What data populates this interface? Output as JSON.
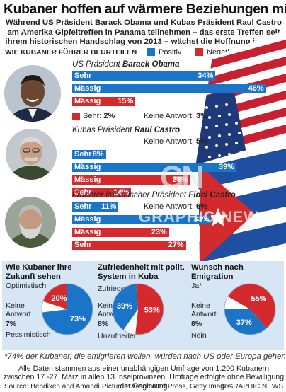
{
  "title": "Kubaner hoffen auf wärmere Beziehungen mit USA",
  "intro": "Während US Präsident Barack Obama und Kubas Präsident Raul Castro am Amerika Gipfeltreffen in Panama teilnehmen – das erste Treffen seit ihrem historischen Handschlag von 2013 – wächst die Hoffnung in Kuba",
  "legend": {
    "title": "WIE KUBANER FÜHRER BEURTEILEN",
    "positive": "Positiv",
    "negative": "Negativ"
  },
  "colors": {
    "positive": "#1a75c9",
    "negative": "#d42a2e",
    "panel": "#d6e6f5"
  },
  "chart_data": [
    {
      "type": "bar",
      "title": "WIE KUBANER FÜHRER BEURTEILEN",
      "groups": [
        {
          "heading_prefix": "US Präsident ",
          "heading_name": "Barack Obama",
          "bars": [
            {
              "label": "Sehr",
              "sentiment": "positive",
              "value": 34
            },
            {
              "label": "Mässig",
              "sentiment": "positive",
              "value": 46
            },
            {
              "label": "Mässig",
              "sentiment": "negative",
              "value": 15
            }
          ],
          "extras": [
            {
              "label": "Sehr:",
              "sentiment": "negative",
              "value": 2
            },
            {
              "label": "Keine Antwort:",
              "value": 3
            }
          ]
        },
        {
          "heading_prefix": "Kubas Präsident ",
          "heading_name": "Raul Castro",
          "bars": [
            {
              "label": "Sehr",
              "sentiment": "positive",
              "value": 8
            },
            {
              "label": "Mässig",
              "sentiment": "positive",
              "value": 39
            },
            {
              "label": "Mässig",
              "sentiment": "negative",
              "value": 28
            },
            {
              "label": "Sehr",
              "sentiment": "negative",
              "value": 14
            }
          ],
          "extras": [
            {
              "label": "Keine Antwort:",
              "value": 5
            }
          ]
        },
        {
          "heading_prefix": "Früherer kubanischer Präsident ",
          "heading_name": "Fidel Castro",
          "bars": [
            {
              "label": "Sehr",
              "sentiment": "positive",
              "value": 11
            },
            {
              "label": "Mässig",
              "sentiment": "positive",
              "value": 33
            },
            {
              "label": "Mässig",
              "sentiment": "negative",
              "value": 23
            },
            {
              "label": "Sehr",
              "sentiment": "negative",
              "value": 27
            }
          ],
          "extras": [
            {
              "label": "Keine Antwort:",
              "value": 6
            }
          ]
        }
      ]
    },
    {
      "type": "pie",
      "title": "Wie Kubaner ihre Zukunft sehen",
      "slices": [
        {
          "label": "Optimistisch",
          "value": 73,
          "sentiment": "positive"
        },
        {
          "label": "Pessimistisch",
          "value": 20,
          "sentiment": "negative"
        },
        {
          "label": "Keine Antwort",
          "value": 7,
          "sentiment": "none"
        }
      ]
    },
    {
      "type": "pie",
      "title": "Zufriedenheit mit polit. System in Kuba",
      "slices": [
        {
          "label": "Zufrieden",
          "value": 39,
          "sentiment": "positive"
        },
        {
          "label": "Unzufrieden",
          "value": 53,
          "sentiment": "negative"
        },
        {
          "label": "Keine Antwort",
          "value": 8,
          "sentiment": "none"
        }
      ]
    },
    {
      "type": "pie",
      "title": "Wunsch nach Emigration",
      "slices": [
        {
          "label": "Ja*",
          "value": 55,
          "sentiment": "negative"
        },
        {
          "label": "Nein",
          "value": 37,
          "sentiment": "positive"
        },
        {
          "label": "Keine Antwort",
          "value": 8,
          "sentiment": "none"
        }
      ]
    }
  ],
  "pies": [
    {
      "title": "Wie Kubaner ihre Zukunft sehen",
      "labels": {
        "top": "Optimistisch",
        "mid": "Keine Antwort",
        "mid_value": "7%",
        "bottom": "Pessimistisch"
      }
    },
    {
      "title": "Zufriedenheit mit polit. System in Kuba",
      "labels": {
        "top": "Zufrieden",
        "mid": "Keine Antwort",
        "mid_value": "8%",
        "bottom": "Unzufrieden"
      }
    },
    {
      "title": "Wunsch nach Emigration",
      "labels": {
        "top": "Ja*",
        "mid": "Keine Antwort",
        "mid_value": "8%",
        "bottom": "Nein"
      }
    }
  ],
  "watermark": {
    "mark": "GN",
    "text": "GRAPHIC NEWS"
  },
  "footnote": "*74% der Kubaner, die emigrieren wollen, würden nach US oder Europa gehen",
  "notes": "Alle Daten stammen aus einer unabhängigen Umfrage von 1.200 Kubanern zwischen 17.-27. März in allen 13 Inselprovinzen. Umfrage erfolgte ohne Bewilligung der Regierung",
  "credits": {
    "source": "Source: Bendixen and Amandi",
    "pictures": "Pictures: Associated Press, Getty Images",
    "copyright": "© GRAPHIC NEWS"
  }
}
